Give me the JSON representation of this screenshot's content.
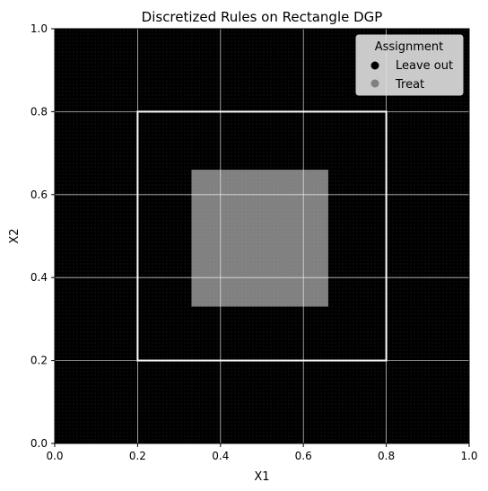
{
  "chart_data": {
    "type": "scatter",
    "title": "Discretized Rules on Rectangle DGP",
    "xlabel": "X1",
    "ylabel": "X2",
    "xlim": [
      0.0,
      1.0
    ],
    "ylim": [
      0.0,
      1.0
    ],
    "xticks": [
      "0.0",
      "0.2",
      "0.4",
      "0.6",
      "0.8",
      "1.0"
    ],
    "yticks": [
      "0.0",
      "0.2",
      "0.4",
      "0.6",
      "0.8",
      "1.0"
    ],
    "grid": true,
    "background_color": "#000000",
    "grid_color": "#ffffff",
    "legend": {
      "title": "Assignment",
      "placement": "top-right",
      "entries": [
        {
          "label": "Leave out",
          "color": "#000000"
        },
        {
          "label": "Treat",
          "color": "#808080"
        }
      ]
    },
    "regions": [
      {
        "name": "Leave out",
        "x": [
          0.0,
          1.0
        ],
        "y": [
          0.0,
          1.0
        ],
        "color": "#000000"
      },
      {
        "name": "Treat",
        "x": [
          0.33,
          0.66
        ],
        "y": [
          0.33,
          0.66
        ],
        "color": "#808080"
      }
    ],
    "outline_rectangle": {
      "x": [
        0.2,
        0.8
      ],
      "y": [
        0.2,
        0.8
      ],
      "color": "#ffffff"
    }
  }
}
